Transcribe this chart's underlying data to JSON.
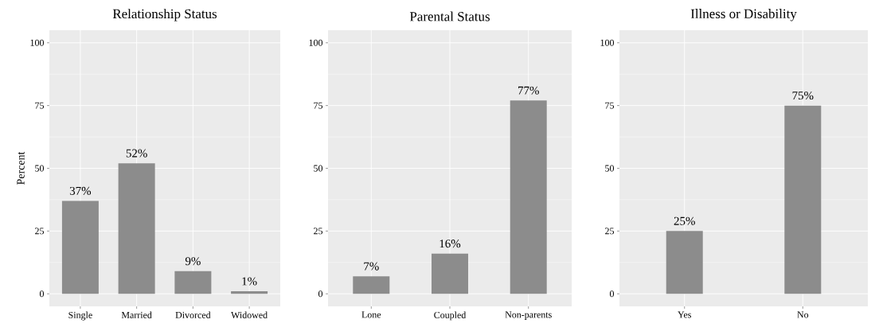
{
  "chart_data": [
    {
      "type": "bar",
      "title": "Relationship Status",
      "ylabel": "Percent",
      "categories": [
        "Single",
        "Married",
        "Divorced",
        "Widowed"
      ],
      "values": [
        37,
        52,
        9,
        1
      ],
      "value_labels": [
        "37%",
        "52%",
        "9%",
        "1%"
      ],
      "color": "#8c8c8c",
      "ylim": [
        -5,
        105
      ],
      "yticks": [
        0,
        25,
        50,
        75,
        100
      ],
      "grid": true
    },
    {
      "type": "bar",
      "title": "Parental Status",
      "categories": [
        "Lone",
        "Coupled",
        "Non-parents"
      ],
      "values": [
        7,
        16,
        77
      ],
      "value_labels": [
        "7%",
        "16%",
        "77%"
      ],
      "color": "#8c8c8c",
      "ylim": [
        -5,
        105
      ],
      "yticks": [
        0,
        25,
        50,
        75,
        100
      ],
      "grid": true
    },
    {
      "type": "bar",
      "title": "Illness or Disability",
      "categories": [
        "Yes",
        "No"
      ],
      "values": [
        25,
        75
      ],
      "value_labels": [
        "25%",
        "75%"
      ],
      "color": "#8c8c8c",
      "ylim": [
        -5,
        105
      ],
      "yticks": [
        0,
        25,
        50,
        75,
        100
      ],
      "grid": true
    }
  ]
}
